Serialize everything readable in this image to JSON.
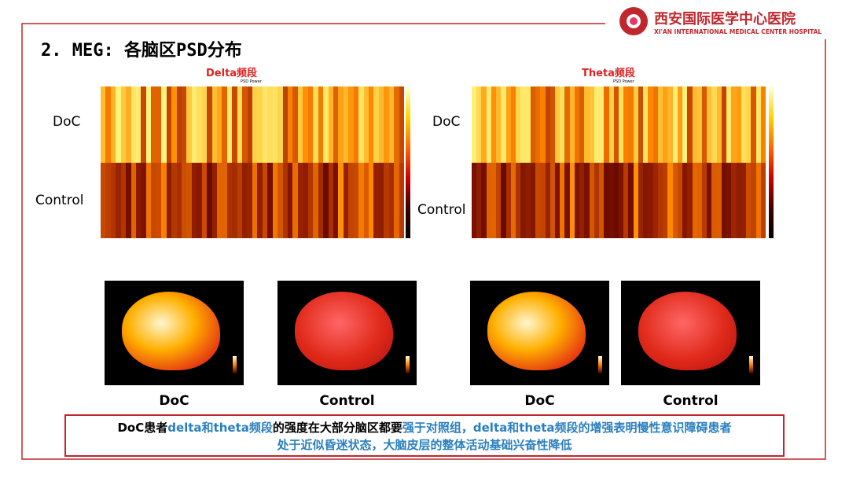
{
  "header": {
    "title": "2. MEG: 各脑区PSD分布",
    "logo_cn": "西安国际医学中心医院",
    "logo_en": "XI'AN INTERNATIONAL MEDICAL CENTER HOSPITAL"
  },
  "heatmaps": [
    {
      "title": "Delta频段",
      "subtitle": "PSD Power",
      "rows": [
        "DoC",
        "Control"
      ]
    },
    {
      "title": "Theta频段",
      "subtitle": "PSD Power",
      "rows": [
        "DoC",
        "Control"
      ]
    }
  ],
  "brains": [
    {
      "caption": "DoC"
    },
    {
      "caption": "Control"
    },
    {
      "caption": "DoC"
    },
    {
      "caption": "Control"
    }
  ],
  "conclusion": {
    "line1": [
      {
        "text": "DoC患者",
        "blue": false
      },
      {
        "text": "delta和theta频段",
        "blue": true
      },
      {
        "text": "的强度在大部分脑区都要",
        "blue": false
      },
      {
        "text": "强于对照组，delta和theta频段的增强表明慢性意识障碍患者",
        "blue": true
      }
    ],
    "line2": [
      {
        "text": "处于近似昏迷状态，大脑皮层的整体活动基础兴奋性降低",
        "blue": true
      }
    ]
  }
}
